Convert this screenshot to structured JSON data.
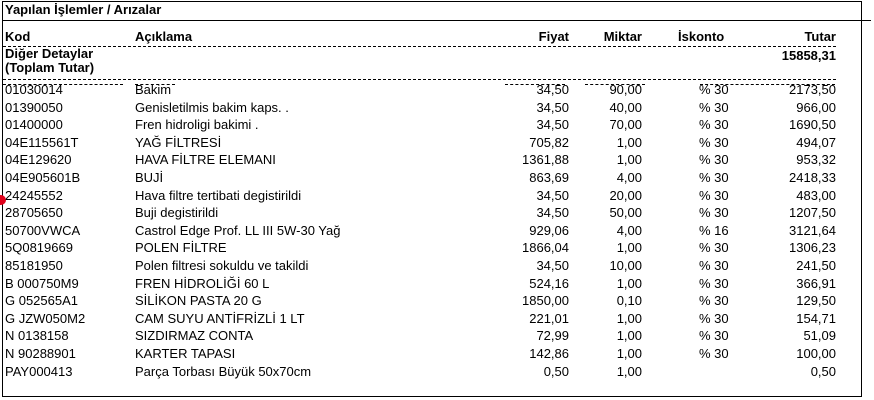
{
  "title": "Yapılan İşlemler / Arızalar",
  "columns": {
    "code": "Kod",
    "description": "Açıklama",
    "price": "Fiyat",
    "quantity": "Miktar",
    "discount": "İskonto",
    "total": "Tutar"
  },
  "group": {
    "label_line1": "Diğer Detaylar",
    "label_line2": "(Toplam Tutar)",
    "total": "15858,31"
  },
  "rows": [
    {
      "code": "01030014",
      "desc": "Bakim",
      "price": "34,50",
      "qty": "90,00",
      "disc": "% 30",
      "total": "2173,50"
    },
    {
      "code": "01390050",
      "desc": "Genisletilmis bakim kaps. .",
      "price": "34,50",
      "qty": "40,00",
      "disc": "% 30",
      "total": "966,00"
    },
    {
      "code": "01400000",
      "desc": "Fren hidroligi bakimi .",
      "price": "34,50",
      "qty": "70,00",
      "disc": "% 30",
      "total": "1690,50"
    },
    {
      "code": "04E115561T",
      "desc": "YAĞ FİLTRESİ",
      "price": "705,82",
      "qty": "1,00",
      "disc": "% 30",
      "total": "494,07"
    },
    {
      "code": "04E129620",
      "desc": "HAVA FİLTRE ELEMANI",
      "price": "1361,88",
      "qty": "1,00",
      "disc": "% 30",
      "total": "953,32"
    },
    {
      "code": "04E905601B",
      "desc": "BUJİ",
      "price": "863,69",
      "qty": "4,00",
      "disc": "% 30",
      "total": "2418,33"
    },
    {
      "code": "24245552",
      "desc": "Hava filtre tertibati degistirildi",
      "price": "34,50",
      "qty": "20,00",
      "disc": "% 30",
      "total": "483,00"
    },
    {
      "code": "28705650",
      "desc": "Buji degistirildi",
      "price": "34,50",
      "qty": "50,00",
      "disc": "% 30",
      "total": "1207,50"
    },
    {
      "code": "50700VWCA",
      "desc": "Castrol Edge Prof. LL III 5W-30 Yağ",
      "price": "929,06",
      "qty": "4,00",
      "disc": "% 16",
      "total": "3121,64"
    },
    {
      "code": "5Q0819669",
      "desc": "POLEN FİLTRE",
      "price": "1866,04",
      "qty": "1,00",
      "disc": "% 30",
      "total": "1306,23"
    },
    {
      "code": "85181950",
      "desc": "Polen filtresi sokuldu ve takildi",
      "price": "34,50",
      "qty": "10,00",
      "disc": "% 30",
      "total": "241,50"
    },
    {
      "code": "B  000750M9",
      "desc": "FREN HİDROLİĞİ 60 L",
      "price": "524,16",
      "qty": "1,00",
      "disc": "% 30",
      "total": "366,91"
    },
    {
      "code": "G  052565A1",
      "desc": "SİLİKON PASTA 20 G",
      "price": "1850,00",
      "qty": "0,10",
      "disc": "% 30",
      "total": "129,50"
    },
    {
      "code": "G  JZW050M2",
      "desc": "CAM SUYU ANTİFRİZLİ 1 LT",
      "price": "221,01",
      "qty": "1,00",
      "disc": "% 30",
      "total": "154,71"
    },
    {
      "code": "N  0138158",
      "desc": "SIZDIRMAZ CONTA",
      "price": "72,99",
      "qty": "1,00",
      "disc": "% 30",
      "total": "51,09"
    },
    {
      "code": "N  90288901",
      "desc": "KARTER TAPASI",
      "price": "142,86",
      "qty": "1,00",
      "disc": "% 30",
      "total": "100,00"
    },
    {
      "code": "PAY000413",
      "desc": "Parça Torbası Büyük 50x70cm",
      "price": "0,50",
      "qty": "1,00",
      "disc": "",
      "total": "0,50"
    }
  ]
}
